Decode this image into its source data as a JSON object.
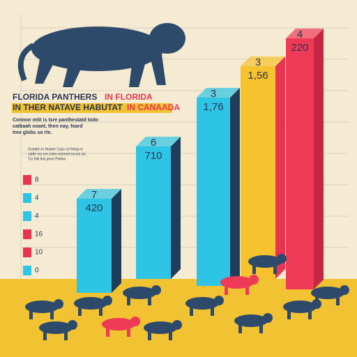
{
  "title": {
    "line1": "FLORIDA PANTHERS",
    "line1_red": "IN FLORIDA",
    "line2": "IN THER NATAVE HABUTAT",
    "line2_red": "IN CANAADA"
  },
  "blurb": [
    "Conmor mtit is tsre panthestatd todo",
    "catbaah coant, then nay, foard",
    "tree globs so rte."
  ],
  "note": [
    "Gunden in Howee Cass ce Hoiqa in",
    "cattle mo ere onter-emmed ea enr an.",
    "Tur thill this pene Pollow."
  ],
  "bars": [
    {
      "rank": "7",
      "label": "420"
    },
    {
      "rank": "6",
      "label": "710"
    },
    {
      "rank": "3",
      "label": "1,76"
    },
    {
      "rank": "3",
      "label": "1,56"
    },
    {
      "rank": "4",
      "label": "220"
    }
  ],
  "legend": [
    "8",
    "4",
    "4",
    "16",
    "10",
    "0"
  ]
}
